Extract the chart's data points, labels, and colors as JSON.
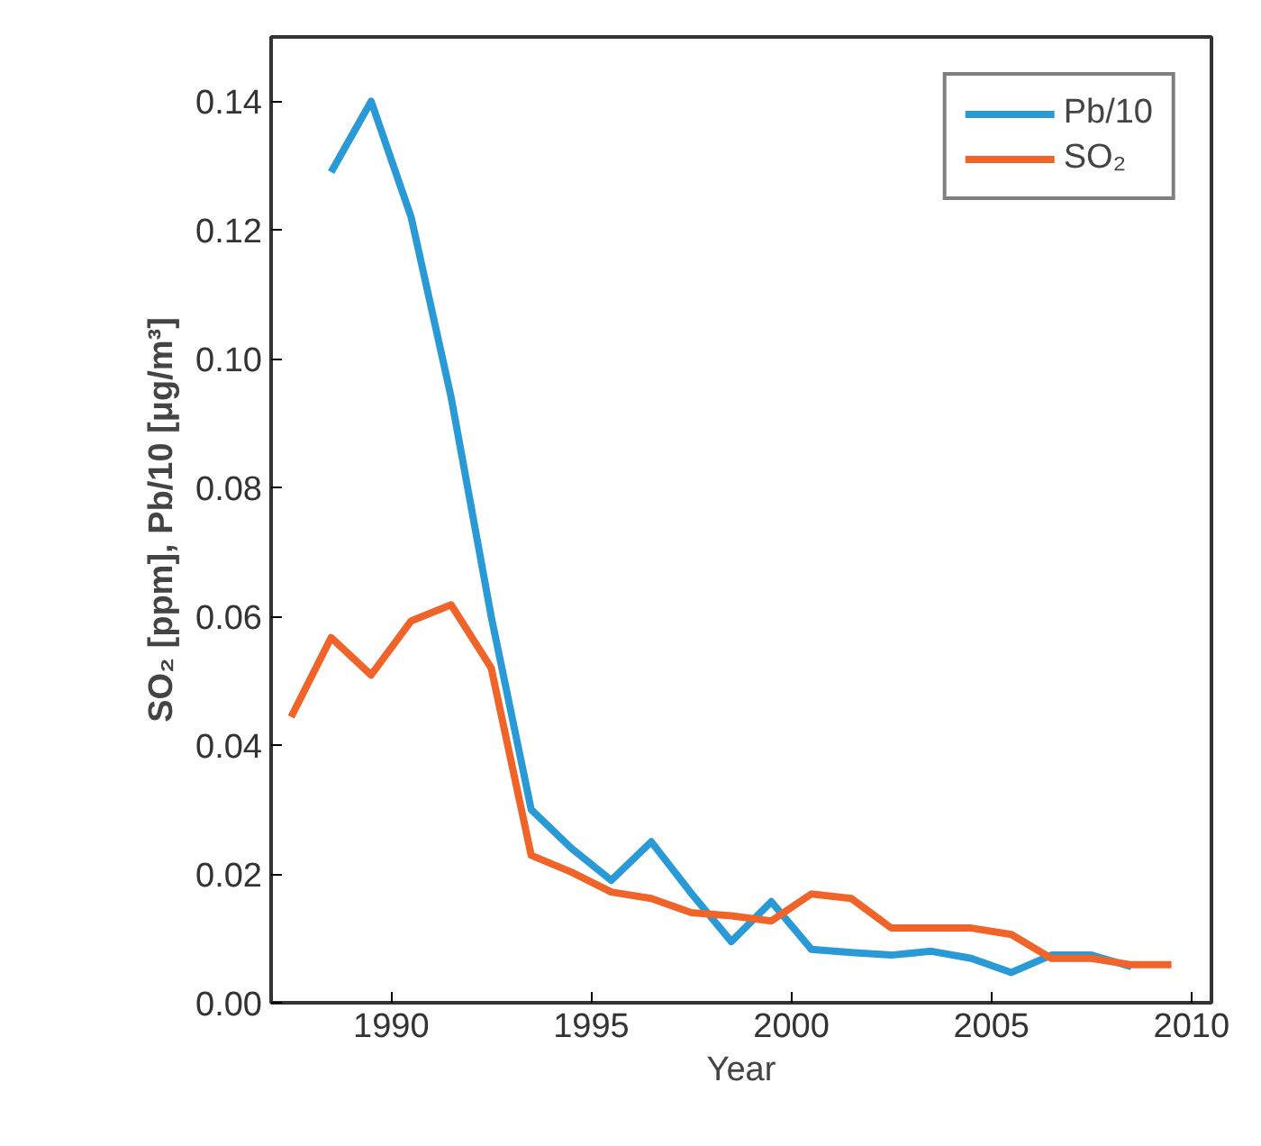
{
  "chart_data": {
    "type": "line",
    "xlabel": "Year",
    "ylabel": "SO₂ [ppm], Pb/10 [μg/m³]",
    "xlim": [
      1987,
      2010.5
    ],
    "xticks": [
      1990,
      1995,
      2000,
      2005,
      2010
    ],
    "ylim": [
      0,
      0.15
    ],
    "yticks": [
      {
        "value": 0,
        "label": "0.00"
      },
      0.02,
      0.04,
      0.06,
      0.08,
      {
        "value": 0.1,
        "label": "0.10"
      },
      0.12,
      0.14
    ],
    "grid": false,
    "legend": "top right",
    "marker": "none",
    "line_style": "solid",
    "series": [
      {
        "name": "Pb/10",
        "color": "#2a9ad6",
        "x": [
          1988.5,
          1989.5,
          1990.5,
          1991.5,
          1992.5,
          1993.5,
          1994.5,
          1995.5,
          1996.5,
          1997.5,
          1998.5,
          1999.5,
          2000.5,
          2001.5,
          2002.5,
          2003.5,
          2004.5,
          2005.5,
          2006.5,
          2007.5,
          2008.5
        ],
        "values": [
          0.129,
          0.14,
          0.122,
          0.094,
          0.06,
          0.03,
          0.024,
          0.019,
          0.025,
          0.017,
          0.0095,
          0.0157,
          0.0083,
          0.0078,
          0.0074,
          0.008,
          0.0069,
          0.0047,
          0.0074,
          0.0074,
          0.0056
        ]
      },
      {
        "name": "SO₂",
        "color": "#f0642a",
        "x": [
          1987.5,
          1988.5,
          1989.5,
          1990.5,
          1991.5,
          1992.5,
          1993.5,
          1994.5,
          1995.5,
          1996.5,
          1997.5,
          1998.5,
          1999.5,
          2000.5,
          2001.5,
          2002.5,
          2003.5,
          2004.5,
          2005.5,
          2006.5,
          2007.5,
          2008.5,
          2009.5
        ],
        "values": [
          0.0444,
          0.0567,
          0.0509,
          0.0593,
          0.0618,
          0.052,
          0.0229,
          0.0203,
          0.0172,
          0.0162,
          0.014,
          0.0135,
          0.0127,
          0.0169,
          0.0162,
          0.0116,
          0.0116,
          0.0116,
          0.0106,
          0.0069,
          0.0069,
          0.0059,
          0.0059
        ]
      }
    ]
  }
}
